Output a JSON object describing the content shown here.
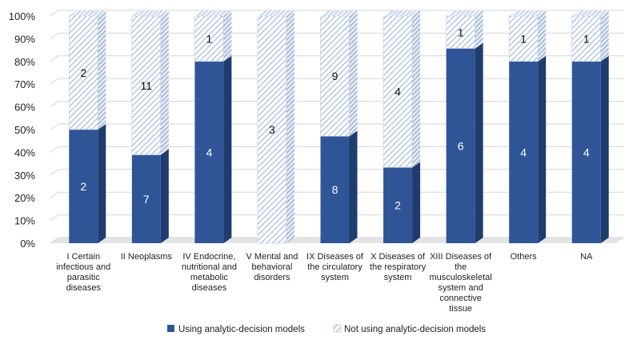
{
  "chart_data": {
    "type": "bar",
    "stacked": true,
    "normalized": true,
    "title": "",
    "xlabel": "",
    "ylabel": "",
    "ylim": [
      0,
      100
    ],
    "y_ticks": [
      "0%",
      "10%",
      "20%",
      "30%",
      "40%",
      "50%",
      "60%",
      "70%",
      "80%",
      "90%",
      "100%"
    ],
    "grid": true,
    "legend_position": "bottom",
    "categories": [
      "I Certain infectious and parasitic diseases",
      "II Neoplasms",
      "IV Endocrine, nutritional and metabolic diseases",
      "V Mental and behavioral disorders",
      "IX Diseases of the circulatory system",
      "X Diseases of the respiratory system",
      "XIII Diseases of the musculoskeletal system and connective tissue",
      "Others",
      "NA"
    ],
    "category_lines": [
      [
        "I Certain",
        "infectious and",
        "parasitic",
        "diseases"
      ],
      [
        "II Neoplasms"
      ],
      [
        "IV Endocrine,",
        "nutritional and",
        "metabolic",
        "diseases"
      ],
      [
        "V Mental and",
        "behavioral",
        "disorders"
      ],
      [
        "IX Diseases of",
        "the circulatory",
        "system"
      ],
      [
        "X Diseases of",
        "the respiratory",
        "system"
      ],
      [
        "XIII Diseases of",
        "the",
        "musculoskeletal",
        "system and",
        "connective",
        "tissue"
      ],
      [
        "Others"
      ],
      [
        "NA"
      ]
    ],
    "series": [
      {
        "name": "Using analytic-decision models",
        "color": "#2f5597",
        "pattern": "solid",
        "values": [
          2,
          7,
          4,
          0,
          8,
          2,
          6,
          4,
          4
        ]
      },
      {
        "name": "Not using analytic-decision models",
        "color": "#8faadc",
        "pattern": "diagonal-hatch",
        "values": [
          2,
          11,
          1,
          3,
          9,
          4,
          1,
          1,
          1
        ]
      }
    ]
  }
}
